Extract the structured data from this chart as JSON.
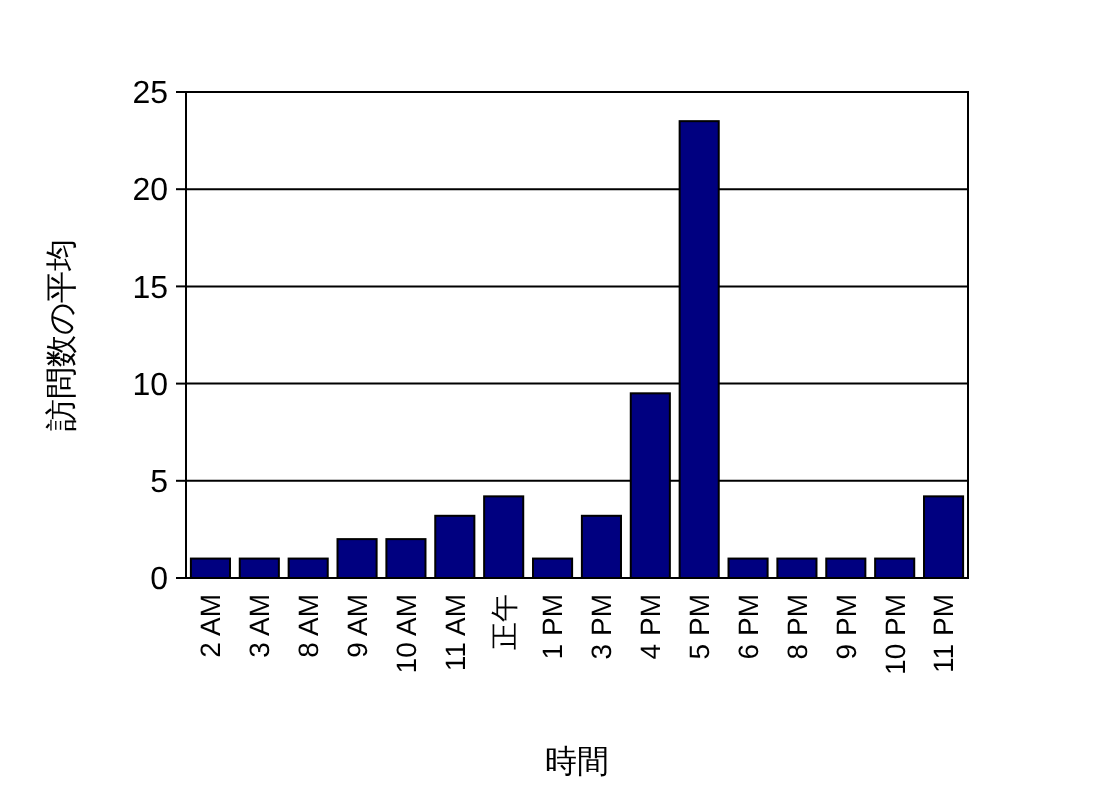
{
  "chart_data": {
    "type": "bar",
    "ylabel": "訪問数の平均",
    "xlabel": "時間",
    "categories": [
      "2 AM",
      "3 AM",
      "8 AM",
      "9 AM",
      "10 AM",
      "11 AM",
      "正午",
      "1 PM",
      "3 PM",
      "4 PM",
      "5 PM",
      "6 PM",
      "8 PM",
      "9 PM",
      "10 PM",
      "11 PM"
    ],
    "values": [
      1,
      1,
      1,
      2,
      2,
      3.2,
      4.2,
      1,
      3.2,
      9.5,
      23.5,
      1,
      1,
      1,
      1,
      4.2
    ],
    "color": "#000080",
    "ylim": [
      0,
      25
    ],
    "yticks": [
      0,
      5,
      10,
      15,
      20,
      25
    ],
    "grid": "y"
  }
}
